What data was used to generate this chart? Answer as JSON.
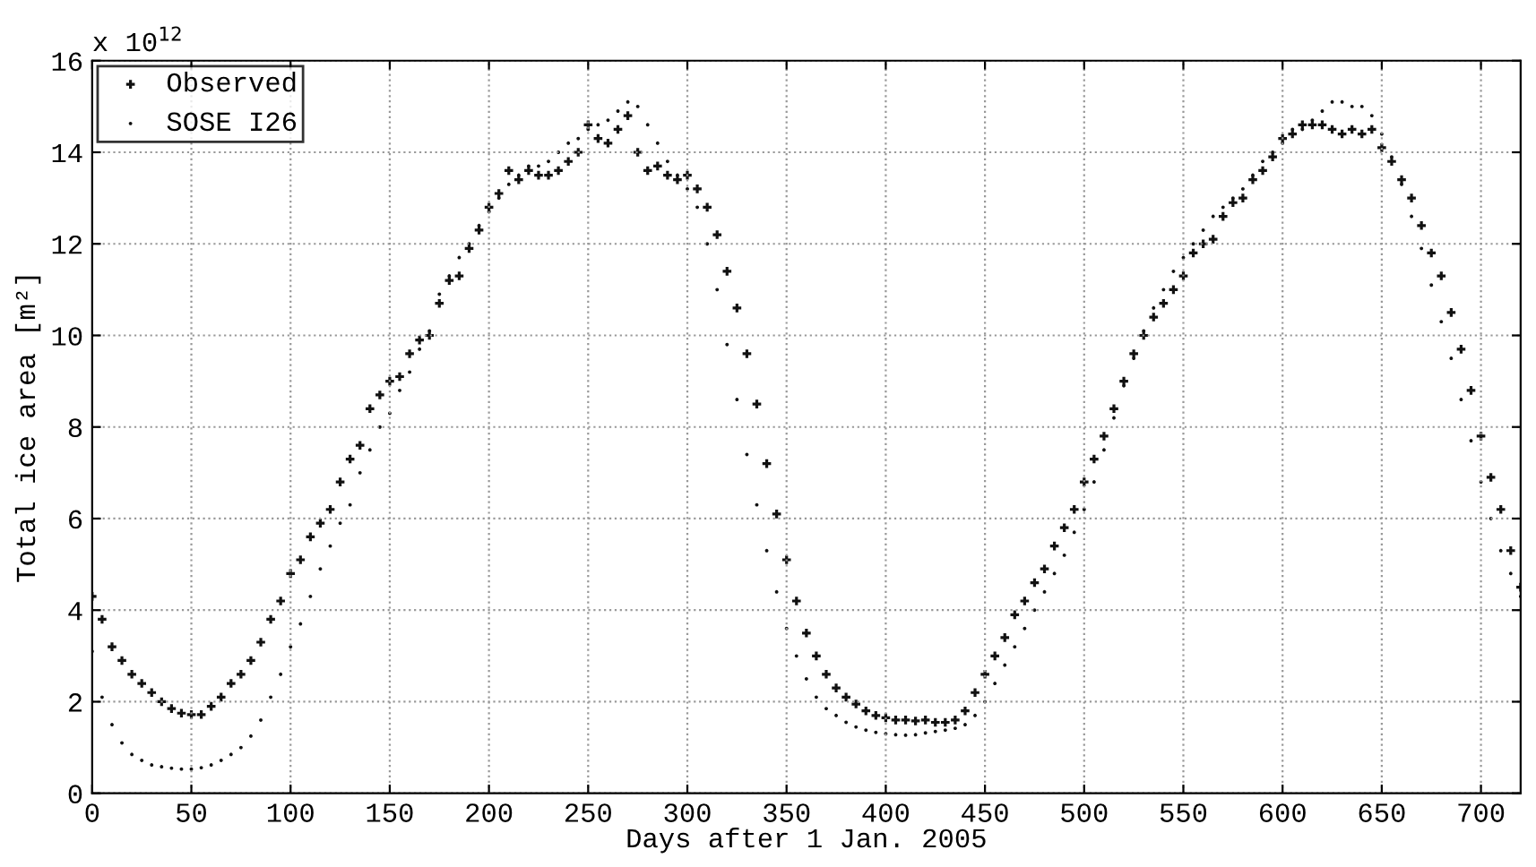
{
  "chart_data": {
    "type": "scatter",
    "xlabel": "Days after 1 Jan. 2005",
    "ylabel": "Total ice area [m²]",
    "annotations": [
      "x 10$^{12}$"
    ],
    "x": [
      0,
      5,
      10,
      15,
      20,
      25,
      30,
      35,
      40,
      45,
      50,
      55,
      60,
      65,
      70,
      75,
      80,
      85,
      90,
      95,
      100,
      105,
      110,
      115,
      120,
      125,
      130,
      135,
      140,
      145,
      150,
      155,
      160,
      165,
      170,
      175,
      180,
      185,
      190,
      195,
      200,
      205,
      210,
      215,
      220,
      225,
      230,
      235,
      240,
      245,
      250,
      255,
      260,
      265,
      270,
      275,
      280,
      285,
      290,
      295,
      300,
      305,
      310,
      315,
      320,
      325,
      330,
      335,
      340,
      345,
      350,
      355,
      360,
      365,
      370,
      375,
      380,
      385,
      390,
      395,
      400,
      405,
      410,
      415,
      420,
      425,
      430,
      435,
      440,
      445,
      450,
      455,
      460,
      465,
      470,
      475,
      480,
      485,
      490,
      495,
      500,
      505,
      510,
      515,
      520,
      525,
      530,
      535,
      540,
      545,
      550,
      555,
      560,
      565,
      570,
      575,
      580,
      585,
      590,
      595,
      600,
      605,
      610,
      615,
      620,
      625,
      630,
      635,
      640,
      645,
      650,
      655,
      660,
      665,
      670,
      675,
      680,
      685,
      690,
      695,
      700,
      705,
      710,
      715,
      720
    ],
    "series": [
      {
        "name": "Observed",
        "color": "#111111",
        "marker": "cross",
        "values": [
          4.3,
          3.8,
          3.2,
          2.9,
          2.6,
          2.4,
          2.2,
          2.0,
          1.85,
          1.75,
          1.72,
          1.72,
          1.9,
          2.1,
          2.4,
          2.6,
          2.9,
          3.3,
          3.8,
          4.2,
          4.8,
          5.1,
          5.6,
          5.9,
          6.2,
          6.8,
          7.3,
          7.6,
          8.4,
          8.7,
          9.0,
          9.1,
          9.6,
          9.9,
          10.0,
          10.7,
          11.2,
          11.3,
          11.9,
          12.3,
          12.8,
          13.1,
          13.6,
          13.4,
          13.6,
          13.5,
          13.5,
          13.6,
          13.8,
          14.0,
          14.6,
          14.3,
          14.2,
          14.5,
          14.8,
          14.0,
          13.6,
          13.7,
          13.5,
          13.4,
          13.5,
          13.2,
          12.8,
          12.2,
          11.4,
          10.6,
          9.6,
          8.5,
          7.2,
          6.1,
          5.1,
          4.2,
          3.5,
          3.0,
          2.6,
          2.3,
          2.1,
          1.95,
          1.8,
          1.7,
          1.65,
          1.6,
          1.6,
          1.58,
          1.6,
          1.55,
          1.55,
          1.6,
          1.8,
          2.2,
          2.6,
          3.0,
          3.4,
          3.9,
          4.2,
          4.6,
          4.9,
          5.4,
          5.8,
          6.2,
          6.8,
          7.3,
          7.8,
          8.4,
          9.0,
          9.6,
          10.0,
          10.4,
          10.7,
          11.0,
          11.3,
          11.8,
          12.0,
          12.1,
          12.6,
          12.9,
          13.0,
          13.4,
          13.6,
          13.9,
          14.3,
          14.4,
          14.6,
          14.6,
          14.6,
          14.5,
          14.4,
          14.5,
          14.4,
          14.5,
          14.1,
          13.8,
          13.4,
          13.0,
          12.4,
          11.8,
          11.3,
          10.5,
          9.7,
          8.8,
          7.8,
          6.9,
          6.2,
          5.3,
          4.5
        ]
      },
      {
        "name": "SOSE I26",
        "color": "#111111",
        "marker": "circle",
        "values": [
          3.1,
          2.1,
          1.5,
          1.1,
          0.85,
          0.72,
          0.62,
          0.58,
          0.55,
          0.53,
          0.53,
          0.56,
          0.62,
          0.72,
          0.85,
          1.0,
          1.25,
          1.6,
          2.1,
          2.6,
          3.2,
          3.7,
          4.3,
          4.9,
          5.4,
          5.9,
          6.3,
          7.0,
          7.5,
          8.0,
          8.3,
          8.8,
          9.2,
          9.7,
          10.1,
          10.9,
          11.3,
          11.7,
          12.0,
          12.4,
          12.7,
          13.0,
          13.3,
          13.5,
          13.7,
          13.7,
          13.8,
          14.0,
          14.2,
          14.3,
          14.5,
          14.6,
          14.7,
          14.9,
          15.1,
          15.0,
          14.6,
          14.2,
          13.8,
          13.5,
          13.2,
          12.8,
          12.0,
          11.0,
          9.8,
          8.6,
          7.4,
          6.3,
          5.3,
          4.4,
          3.6,
          3.0,
          2.5,
          2.1,
          1.85,
          1.7,
          1.55,
          1.45,
          1.38,
          1.33,
          1.3,
          1.28,
          1.27,
          1.28,
          1.32,
          1.35,
          1.38,
          1.42,
          1.5,
          1.7,
          2.0,
          2.4,
          2.8,
          3.2,
          3.6,
          4.0,
          4.4,
          4.8,
          5.2,
          5.7,
          6.2,
          6.8,
          7.5,
          8.2,
          8.9,
          9.5,
          10.1,
          10.6,
          11.0,
          11.4,
          11.7,
          12.0,
          12.3,
          12.6,
          12.8,
          13.0,
          13.2,
          13.5,
          13.8,
          14.0,
          14.2,
          14.5,
          14.5,
          14.7,
          14.9,
          15.1,
          15.1,
          15.0,
          15.0,
          14.8,
          14.4,
          13.9,
          13.3,
          12.6,
          11.9,
          11.1,
          10.3,
          9.5,
          8.6,
          7.7,
          6.8,
          6.0,
          5.3,
          4.8,
          4.3
        ]
      }
    ],
    "xlim": [
      0,
      720
    ],
    "xticks": [
      0,
      50,
      100,
      150,
      200,
      250,
      300,
      350,
      400,
      450,
      500,
      550,
      600,
      650,
      700
    ],
    "ylim": [
      0,
      16
    ],
    "yticks": [
      0,
      2,
      4,
      6,
      8,
      10,
      12,
      14,
      16
    ],
    "grid": true,
    "legend": "top left"
  }
}
